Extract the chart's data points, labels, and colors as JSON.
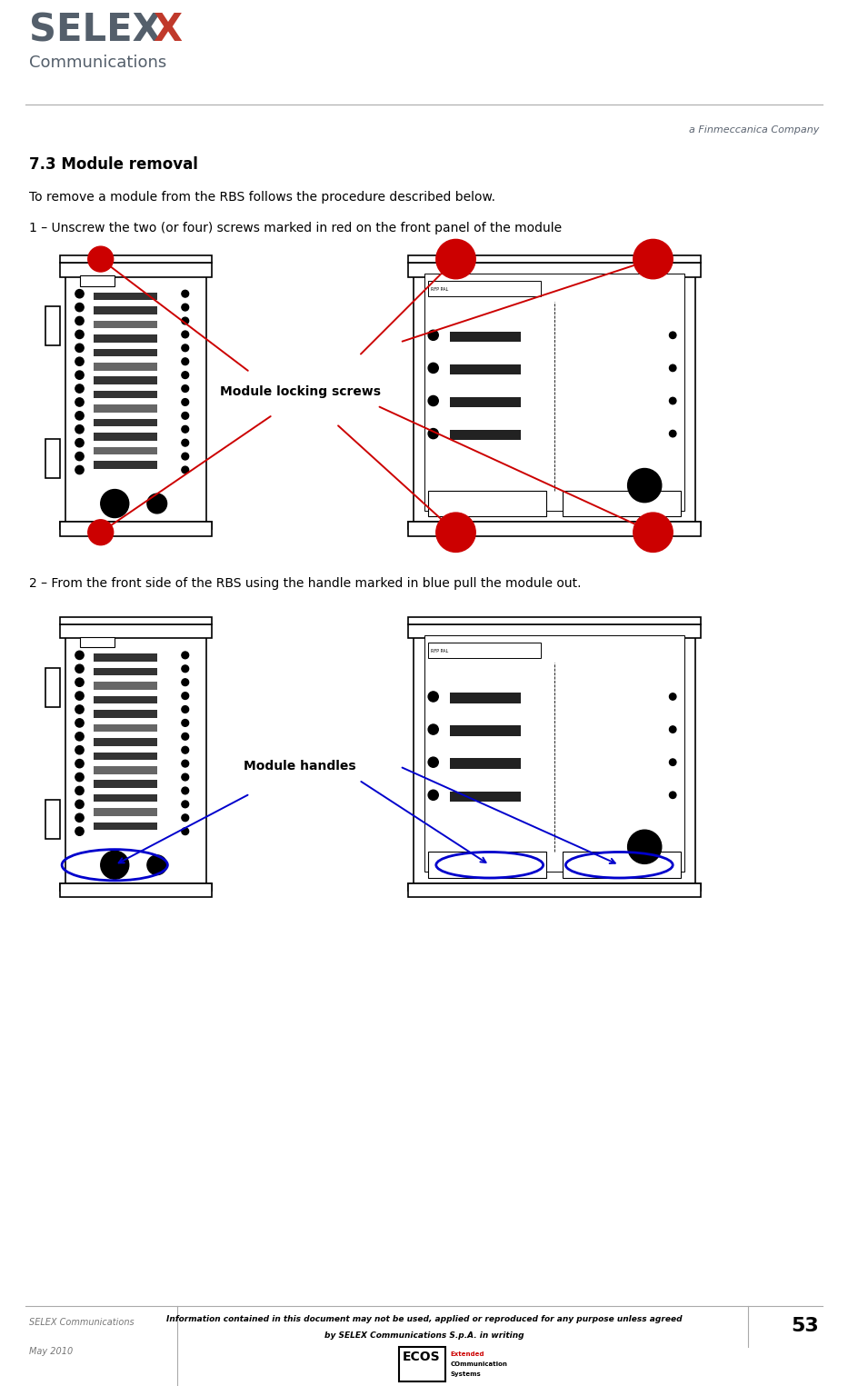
{
  "page_width": 9.33,
  "page_height": 15.25,
  "bg_color": "#ffffff",
  "dpi": 100,
  "header": {
    "selex_color": "#545f6b",
    "x_color": "#c0392b",
    "comm_color": "#545f6b",
    "line_color": "#aaaaaa",
    "finmeccanica_text": "a Finmeccanica Company",
    "finmeccanica_color": "#5a6370"
  },
  "title": "7.3 Module removal",
  "para1": "To remove a module from the RBS follows the procedure described below.",
  "step1": "1 – Unscrew the two (or four) screws marked in red on the front panel of the module",
  "step2": "2 – From the front side of the RBS using the handle marked in blue pull the module out.",
  "label1": "Module locking screws",
  "label2": "Module handles",
  "red": "#cc0000",
  "blue": "#0000cc",
  "footer": {
    "left_text": "SELEX Communications",
    "center_text1": "Information contained in this document may not be used, applied or reproduced for any purpose unless agreed",
    "center_text2": "by SELEX Communications S.p.A. in writing",
    "page_num": "53",
    "date_text": "May 2010",
    "ecos_text": "ECOS",
    "ecos_sub1": "Extended",
    "ecos_sub2": "COmmunication",
    "ecos_sub3": "Systems",
    "ecos_color": "#cc0000"
  }
}
